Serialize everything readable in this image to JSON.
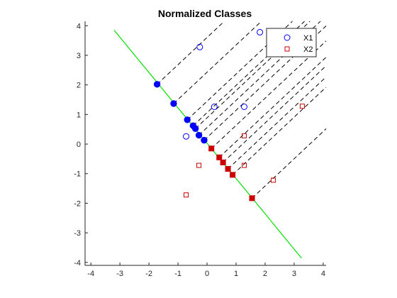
{
  "chart_data": {
    "type": "scatter",
    "title": "Normalized Classes",
    "xlabel": "",
    "ylabel": "",
    "xlim": [
      -4.2,
      4.1
    ],
    "ylim": [
      -4.1,
      4.15
    ],
    "xticks": [
      -4,
      -3,
      -2,
      -1,
      0,
      1,
      2,
      3,
      4
    ],
    "yticks": [
      -4,
      -3,
      -2,
      -1,
      0,
      1,
      2,
      3,
      4
    ],
    "xtick_labels": [
      "-4",
      "-3",
      "-2",
      "-1",
      "0",
      "1",
      "2",
      "3",
      "4"
    ],
    "ytick_labels": [
      "-4",
      "-3",
      "-2",
      "-1",
      "0",
      "1",
      "2",
      "3",
      "4"
    ],
    "grid": false,
    "legend_location": "top-right",
    "projection_line": {
      "x": [
        -3.2,
        3.25
      ],
      "y": [
        3.85,
        -3.85
      ],
      "color": "#00e000"
    },
    "series": [
      {
        "name": "X1",
        "marker": "circle",
        "color": "#0000ff",
        "points": [
          {
            "x": -0.25,
            "y": 3.28,
            "proj_x": -1.72,
            "proj_y": 2.02
          },
          {
            "x": 1.82,
            "y": 3.78,
            "proj_x": -1.15,
            "proj_y": 1.37
          },
          {
            "x": 0.25,
            "y": 1.26,
            "proj_x": -0.68,
            "proj_y": 0.82
          },
          {
            "x": 1.28,
            "y": 1.26,
            "proj_x": -0.48,
            "proj_y": 0.62
          },
          {
            "x": -0.72,
            "y": 0.26,
            "proj_x": -0.4,
            "proj_y": 0.52
          }
        ],
        "extra_projections": [
          {
            "x": -0.28,
            "y": 0.3
          },
          {
            "x": -0.1,
            "y": 0.13
          }
        ]
      },
      {
        "name": "X2",
        "marker": "square",
        "color": "#cc0000",
        "points": [
          {
            "x": 1.28,
            "y": 0.28,
            "proj_x": 0.15,
            "proj_y": -0.15
          },
          {
            "x": 3.28,
            "y": 1.28,
            "proj_x": 0.42,
            "proj_y": -0.45
          },
          {
            "x": -0.28,
            "y": -0.72,
            "proj_x": 0.55,
            "proj_y": -0.62
          },
          {
            "x": 1.28,
            "y": -0.72,
            "proj_x": 0.72,
            "proj_y": -0.84
          },
          {
            "x": -0.72,
            "y": -1.72,
            "proj_x": 0.88,
            "proj_y": -1.04
          },
          {
            "x": 2.28,
            "y": -1.22,
            "proj_x": 1.55,
            "proj_y": -1.83
          }
        ],
        "extra_projections": []
      }
    ]
  }
}
